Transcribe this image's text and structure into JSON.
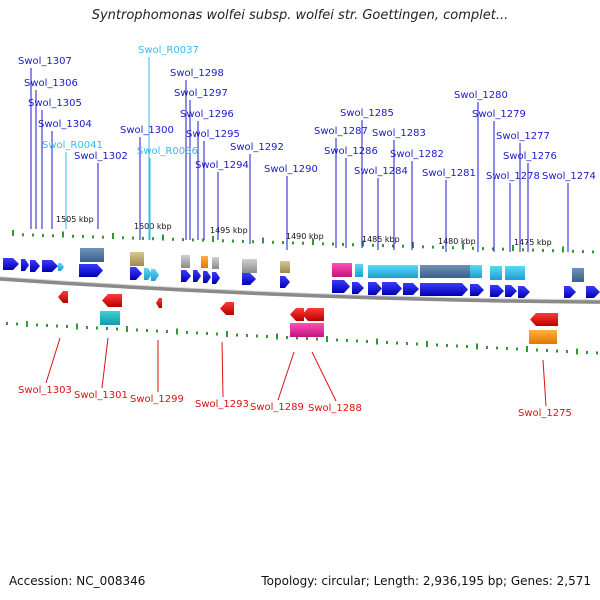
{
  "title": "Syntrophomonas wolfei subsp. wolfei str. Goettingen, complet...",
  "footer": {
    "accession": "Accession: NC_008346",
    "summary": "Topology: circular; Length: 2,936,195 bp; Genes: 2,571"
  },
  "colors": {
    "forward_label": "#1a1acc",
    "rna_label": "#33bbee",
    "reverse_label": "#dd1111",
    "backbone": "#777777",
    "tick": "#339933"
  },
  "kbp_scale": [
    {
      "label": "1505 kbp"
    },
    {
      "label": "1500 kbp"
    },
    {
      "label": "1495 kbp"
    },
    {
      "label": "1490 kbp"
    },
    {
      "label": "1485 kbp"
    },
    {
      "label": "1480 kbp"
    },
    {
      "label": "1475 kbp"
    }
  ],
  "forward_labels": [
    {
      "text": "Swol_1307",
      "type": "gene"
    },
    {
      "text": "Swol_1306",
      "type": "gene"
    },
    {
      "text": "Swol_1305",
      "type": "gene"
    },
    {
      "text": "Swol_1304",
      "type": "gene"
    },
    {
      "text": "Swol_R0041",
      "type": "rna"
    },
    {
      "text": "Swol_1302",
      "type": "gene"
    },
    {
      "text": "Swol_R0037",
      "type": "rna"
    },
    {
      "text": "Swol_1300",
      "type": "gene"
    },
    {
      "text": "Swol_R0036",
      "type": "rna"
    },
    {
      "text": "Swol_1298",
      "type": "gene"
    },
    {
      "text": "Swol_1297",
      "type": "gene"
    },
    {
      "text": "Swol_1296",
      "type": "gene"
    },
    {
      "text": "Swol_1295",
      "type": "gene"
    },
    {
      "text": "Swol_1294",
      "type": "gene"
    },
    {
      "text": "Swol_1292",
      "type": "gene"
    },
    {
      "text": "Swol_1290",
      "type": "gene"
    },
    {
      "text": "Swol_1287",
      "type": "gene"
    },
    {
      "text": "Swol_1285",
      "type": "gene"
    },
    {
      "text": "Swol_1286",
      "type": "gene"
    },
    {
      "text": "Swol_1283",
      "type": "gene"
    },
    {
      "text": "Swol_1284",
      "type": "gene"
    },
    {
      "text": "Swol_1282",
      "type": "gene"
    },
    {
      "text": "Swol_1281",
      "type": "gene"
    },
    {
      "text": "Swol_1280",
      "type": "gene"
    },
    {
      "text": "Swol_1279",
      "type": "gene"
    },
    {
      "text": "Swol_1277",
      "type": "gene"
    },
    {
      "text": "Swol_1276",
      "type": "gene"
    },
    {
      "text": "Swol_1278",
      "type": "gene"
    },
    {
      "text": "Swol_1274",
      "type": "gene"
    }
  ],
  "reverse_labels": [
    {
      "text": "Swol_1303"
    },
    {
      "text": "Swol_1301"
    },
    {
      "text": "Swol_1299"
    },
    {
      "text": "Swol_1293"
    },
    {
      "text": "Swol_1289"
    },
    {
      "text": "Swol_1288"
    },
    {
      "text": "Swol_1275"
    }
  ]
}
